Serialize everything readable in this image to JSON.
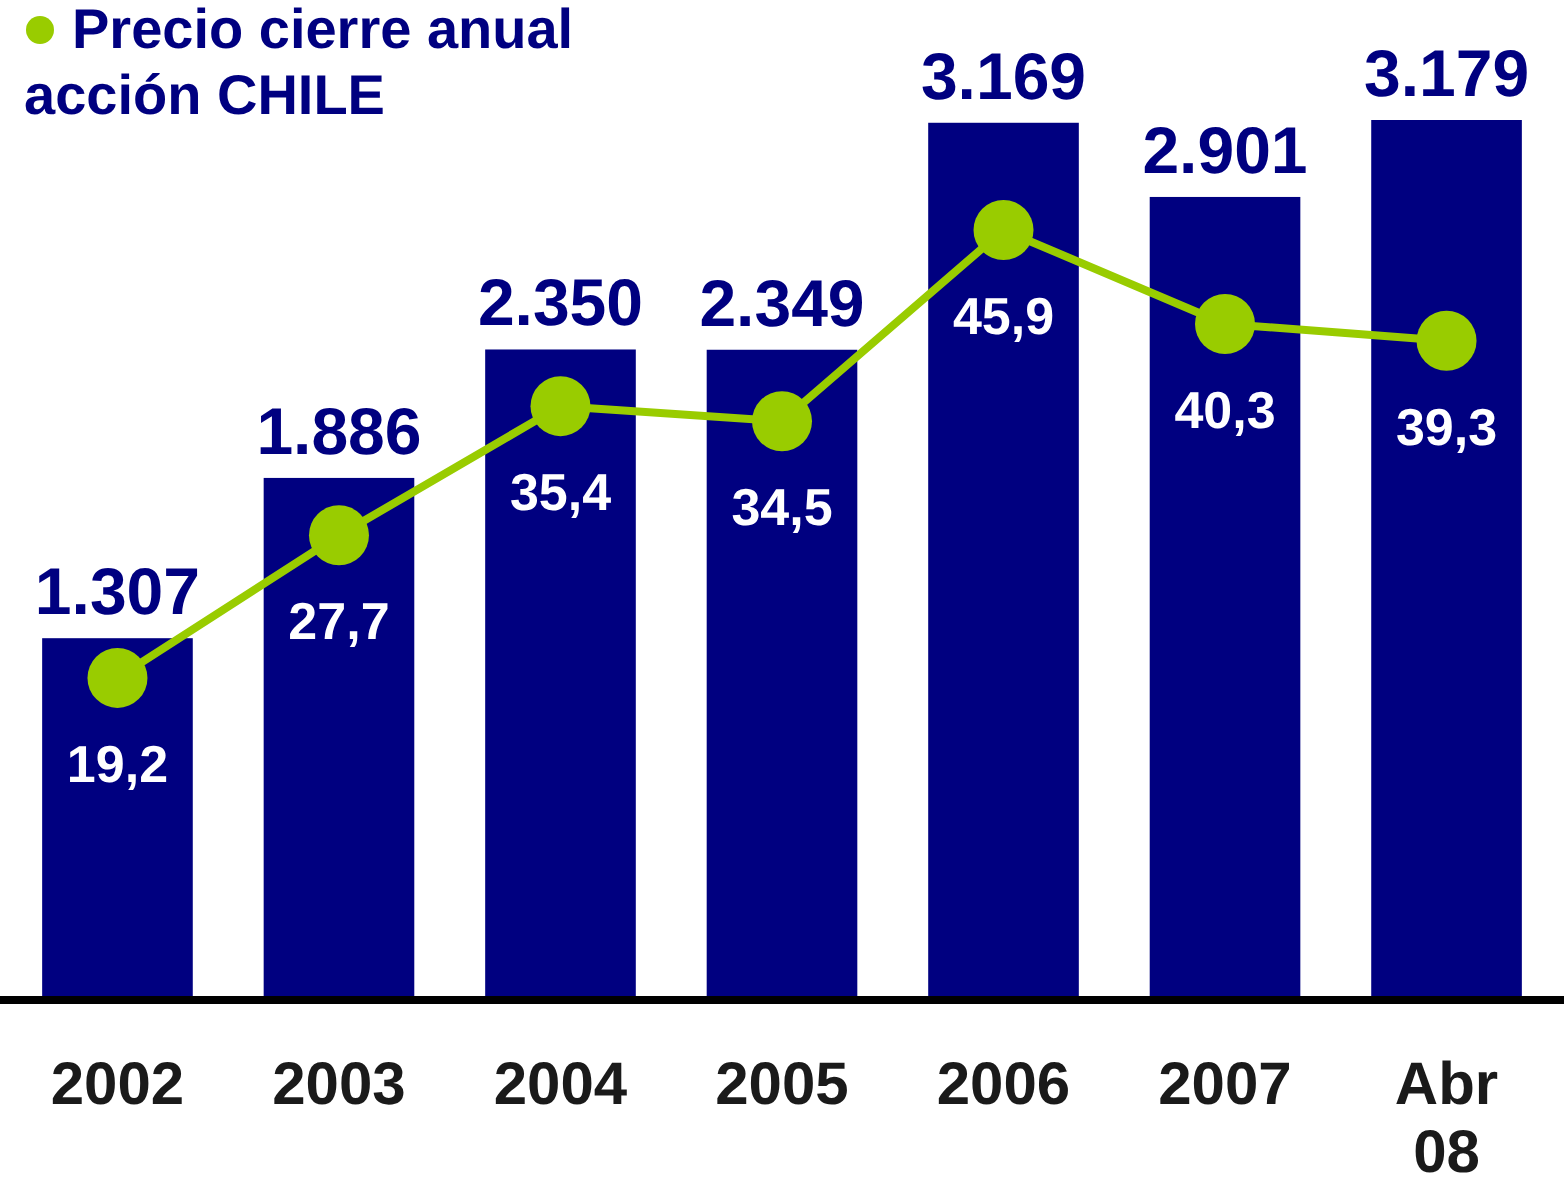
{
  "chart_data": {
    "type": "bar",
    "categories": [
      "2002",
      "2003",
      "2004",
      "2005",
      "2006",
      "2007",
      "Abr 08"
    ],
    "series": [
      {
        "color": "#000080",
        "values": [
          1307,
          1886,
          2350,
          2349,
          3169,
          2901,
          3179
        ],
        "value_labels": [
          "1.307",
          "1.886",
          "2.350",
          "2.349",
          "3.169",
          "2.901",
          "3.179"
        ]
      },
      {
        "type": "line",
        "name": "Precio cierre anual acción CHILE",
        "color": "#99cc00",
        "axis": "y2",
        "marker": "circle",
        "values": [
          19.2,
          27.7,
          35.4,
          34.5,
          45.9,
          40.3,
          39.3
        ],
        "value_labels": [
          "19,2",
          "27,7",
          "35,4",
          "34,5",
          "45,9",
          "40,3",
          "39,3"
        ]
      }
    ],
    "legend": "top left"
  }
}
